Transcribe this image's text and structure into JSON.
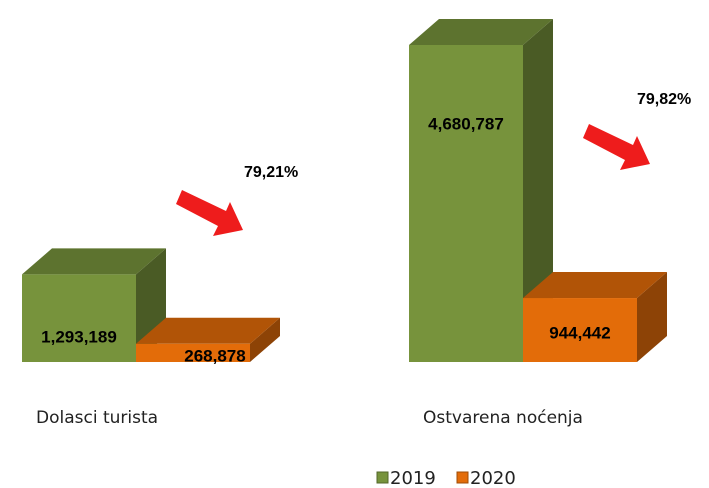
{
  "chart_data": {
    "type": "bar3d",
    "categories": [
      "Dolasci turista",
      "Ostvarena noćenja"
    ],
    "series": [
      {
        "name": "2019",
        "color": "#77933c",
        "values": [
          1293189,
          4680787
        ],
        "value_labels": [
          "1,293,189",
          "4,680,787"
        ]
      },
      {
        "name": "2020",
        "color": "#e36c09",
        "values": [
          268878,
          944442
        ],
        "value_labels": [
          "268,878",
          "944,442"
        ]
      }
    ],
    "annotations": [
      "79,21%",
      "79,82%"
    ],
    "legend": "bottom"
  }
}
